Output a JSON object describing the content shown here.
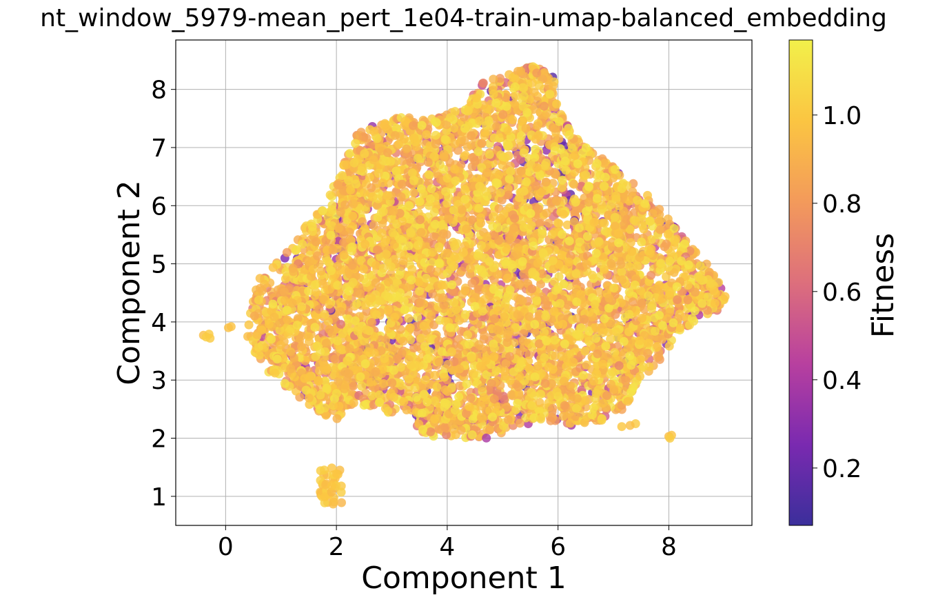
{
  "chart_data": {
    "type": "scatter",
    "title": "nt_window_5979-mean_pert_1e04-train-umap-balanced_embedding",
    "xlabel": "Component 1",
    "ylabel": "Component 2",
    "xlim": [
      -0.9,
      9.5
    ],
    "ylim": [
      0.5,
      8.85
    ],
    "x_ticks": [
      0,
      2,
      4,
      6,
      8
    ],
    "y_ticks": [
      1,
      2,
      3,
      4,
      5,
      6,
      7,
      8
    ],
    "grid": true,
    "legend": "none",
    "colorbar": {
      "label": "Fitness",
      "colormap": "plasma",
      "range": [
        0.07,
        1.17
      ],
      "ticks": [
        0.2,
        0.4,
        0.6,
        0.8,
        1.0
      ],
      "colors": [
        "#3b2f9b",
        "#7a2ab0",
        "#b8409f",
        "#dd6f7c",
        "#f39a5b",
        "#fbc542",
        "#f2f04a"
      ]
    },
    "approx_point_count": 6000,
    "dominant_fitness_range": [
      0.8,
      1.05
    ],
    "clusters": [
      {
        "name": "main body",
        "x_range": [
          0.35,
          9.1
        ],
        "y_range": [
          1.95,
          8.45
        ],
        "outline": [
          [
            0.4,
            3.6
          ],
          [
            0.5,
            4.3
          ],
          [
            0.7,
            4.8
          ],
          [
            1.2,
            5.3
          ],
          [
            1.4,
            5.6
          ],
          [
            1.8,
            6.0
          ],
          [
            2.0,
            6.5
          ],
          [
            2.2,
            6.9
          ],
          [
            2.4,
            7.3
          ],
          [
            2.8,
            7.4
          ],
          [
            3.2,
            7.55
          ],
          [
            3.8,
            7.5
          ],
          [
            4.3,
            7.7
          ],
          [
            4.6,
            8.1
          ],
          [
            5.2,
            8.3
          ],
          [
            5.6,
            8.45
          ],
          [
            5.95,
            8.2
          ],
          [
            6.0,
            7.7
          ],
          [
            6.3,
            7.2
          ],
          [
            6.5,
            7.0
          ],
          [
            7.0,
            6.7
          ],
          [
            7.5,
            6.3
          ],
          [
            8.0,
            5.8
          ],
          [
            8.3,
            5.4
          ],
          [
            8.7,
            5.0
          ],
          [
            9.05,
            4.5
          ],
          [
            9.0,
            4.2
          ],
          [
            8.6,
            4.1
          ],
          [
            8.2,
            3.8
          ],
          [
            7.9,
            3.4
          ],
          [
            7.5,
            3.0
          ],
          [
            7.2,
            2.5
          ],
          [
            6.8,
            2.3
          ],
          [
            6.2,
            2.2
          ],
          [
            5.8,
            2.3
          ],
          [
            5.3,
            2.2
          ],
          [
            4.8,
            2.0
          ],
          [
            4.2,
            2.0
          ],
          [
            3.7,
            2.0
          ],
          [
            3.3,
            2.3
          ],
          [
            2.8,
            2.5
          ],
          [
            2.3,
            2.6
          ],
          [
            2.0,
            2.3
          ],
          [
            1.6,
            2.5
          ],
          [
            1.2,
            2.8
          ],
          [
            0.8,
            3.1
          ],
          [
            0.4,
            3.6
          ]
        ]
      },
      {
        "name": "left pair",
        "points": [
          [
            -0.4,
            3.77
          ],
          [
            -0.35,
            3.74
          ],
          [
            -0.3,
            3.79
          ],
          [
            -0.28,
            3.72
          ],
          [
            0.05,
            3.9
          ],
          [
            0.1,
            3.92
          ]
        ]
      },
      {
        "name": "arc",
        "points": [
          [
            0.4,
            3.75
          ],
          [
            0.42,
            3.95
          ],
          [
            0.45,
            4.15
          ],
          [
            0.5,
            4.35
          ],
          [
            0.55,
            4.55
          ],
          [
            0.62,
            4.75
          ]
        ]
      },
      {
        "name": "bottom cluster",
        "x_range": [
          1.7,
          2.1
        ],
        "y_range": [
          0.85,
          1.5
        ]
      },
      {
        "name": "right outlier",
        "points": [
          [
            8.0,
            2.03
          ],
          [
            8.02,
            2.0
          ],
          [
            8.05,
            2.05
          ]
        ]
      },
      {
        "name": "right tail",
        "points": [
          [
            7.15,
            2.2
          ],
          [
            7.3,
            2.22
          ],
          [
            7.4,
            2.25
          ]
        ]
      }
    ]
  }
}
